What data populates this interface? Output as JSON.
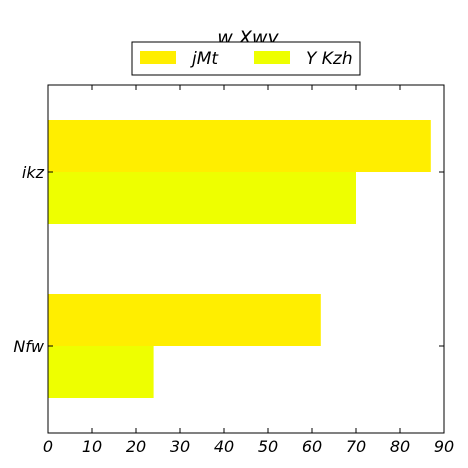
{
  "chart_data": {
    "type": "bar",
    "orientation": "horizontal",
    "title": "w Xwy",
    "categories": [
      "Nfw",
      "ikz"
    ],
    "series": [
      {
        "name": "jMt",
        "color": "#ffee00",
        "values": [
          62,
          87
        ]
      },
      {
        "name": "Y Kzh",
        "color": "#eeff00",
        "values": [
          24,
          70
        ]
      }
    ],
    "xlim": [
      0,
      90
    ],
    "xticks": [
      "0",
      "10",
      "20",
      "30",
      "40",
      "50",
      "60",
      "70",
      "80",
      "90"
    ],
    "grid": false,
    "legend_position": "top-center"
  }
}
